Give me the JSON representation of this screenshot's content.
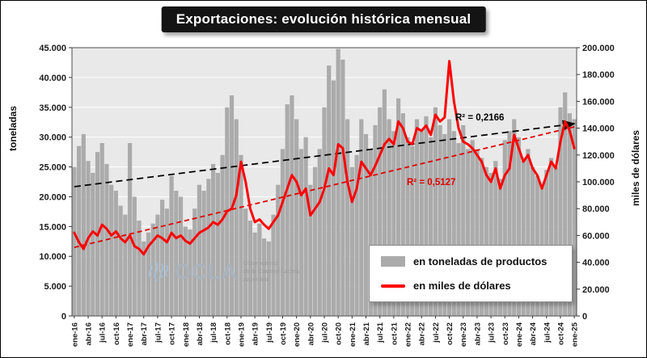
{
  "title": "Exportaciones: evolución histórica mensual",
  "legend": {
    "tonnes_label": "en toneladas de productos",
    "dollars_label": "en miles de dólares"
  },
  "annotations": {
    "r2_tonnes": "R² = 0,2166",
    "r2_dollars": "R² = 0,5127"
  },
  "watermark": {
    "name": "OCLA",
    "line1": "Observatorio",
    "line2": "de la Cadena Láctea",
    "line3": "Argentina"
  },
  "colors": {
    "bar": "#ababab",
    "line": "#fe0000",
    "trend_tonnes": "#000000",
    "trend_dollars": "#e00000",
    "plot_bg": "#e9e9e9",
    "grid": "#ffffff",
    "border": "#4d4d4d",
    "title_bg": "#141414"
  },
  "chart_data": {
    "type": "combo",
    "title": "Exportaciones: evolución histórica mensual",
    "x_tick_every": 3,
    "months": [
      "ene-16",
      "feb-16",
      "mar-16",
      "abr-16",
      "may-16",
      "jun-16",
      "jul-16",
      "ago-16",
      "sep-16",
      "oct-16",
      "nov-16",
      "dic-16",
      "ene-17",
      "feb-17",
      "mar-17",
      "abr-17",
      "may-17",
      "jun-17",
      "jul-17",
      "ago-17",
      "sep-17",
      "oct-17",
      "nov-17",
      "dic-17",
      "ene-18",
      "feb-18",
      "mar-18",
      "abr-18",
      "may-18",
      "jun-18",
      "jul-18",
      "ago-18",
      "sep-18",
      "oct-18",
      "nov-18",
      "dic-18",
      "ene-19",
      "feb-19",
      "mar-19",
      "abr-19",
      "may-19",
      "jun-19",
      "jul-19",
      "ago-19",
      "sep-19",
      "oct-19",
      "nov-19",
      "dic-19",
      "ene-20",
      "feb-20",
      "mar-20",
      "abr-20",
      "may-20",
      "jun-20",
      "jul-20",
      "ago-20",
      "sep-20",
      "oct-20",
      "nov-20",
      "dic-20",
      "ene-21",
      "feb-21",
      "mar-21",
      "abr-21",
      "may-21",
      "jun-21",
      "jul-21",
      "ago-21",
      "sep-21",
      "oct-21",
      "nov-21",
      "dic-21",
      "ene-22",
      "feb-22",
      "mar-22",
      "abr-22",
      "may-22",
      "jun-22",
      "jul-22",
      "ago-22",
      "sep-22",
      "oct-22",
      "nov-22",
      "dic-22",
      "ene-23",
      "feb-23",
      "mar-23",
      "abr-23",
      "may-23",
      "jun-23",
      "jul-23",
      "ago-23",
      "sep-23",
      "oct-23",
      "nov-23",
      "dic-23",
      "ene-24",
      "feb-24",
      "mar-24",
      "abr-24",
      "may-24",
      "jun-24",
      "jul-24",
      "ago-24",
      "sep-24",
      "oct-24",
      "nov-24",
      "dic-24",
      "ene-25"
    ],
    "left_axis": {
      "label": "toneladas",
      "min": 0,
      "max": 45000,
      "step": 5000
    },
    "right_axis": {
      "label": "miles de dólares",
      "min": 0,
      "max": 200000,
      "step": 20000
    },
    "series": [
      {
        "name": "en toneladas de productos",
        "type": "bar",
        "axis": "left",
        "color": "#ababab",
        "values": [
          25000,
          28500,
          30500,
          26000,
          24000,
          27500,
          29000,
          25500,
          22000,
          21000,
          18500,
          17000,
          29000,
          20000,
          16000,
          12500,
          14000,
          15500,
          17000,
          19500,
          18000,
          23500,
          21000,
          20000,
          15000,
          14500,
          18000,
          22000,
          21000,
          23000,
          25500,
          24000,
          27000,
          35000,
          37000,
          33000,
          27000,
          18000,
          16000,
          14000,
          15500,
          13000,
          12500,
          17000,
          22000,
          28000,
          35500,
          37000,
          33000,
          28000,
          30000,
          22000,
          25000,
          28000,
          35000,
          42000,
          39500,
          44800,
          43000,
          33000,
          25000,
          27000,
          33000,
          30500,
          28000,
          32000,
          35000,
          38000,
          33000,
          31000,
          36500,
          34000,
          30000,
          28500,
          33000,
          31000,
          33500,
          30000,
          35000,
          32000,
          30500,
          33000,
          31000,
          29000,
          32000,
          28000,
          29500,
          28000,
          26500,
          25000,
          24000,
          26000,
          23000,
          29500,
          31000,
          33000,
          30000,
          26000,
          28000,
          25000,
          23500,
          22000,
          24500,
          26500,
          25000,
          35000,
          37500,
          34000,
          33000
        ]
      },
      {
        "name": "en miles de dólares",
        "type": "line",
        "axis": "right",
        "color": "#fe0000",
        "values": [
          62000,
          55000,
          50000,
          58000,
          63000,
          60000,
          68000,
          65000,
          60000,
          63000,
          58000,
          55000,
          60000,
          52000,
          50000,
          46000,
          52000,
          56000,
          60000,
          58000,
          55000,
          62000,
          58000,
          60000,
          56000,
          54000,
          58000,
          62000,
          64000,
          66000,
          70000,
          68000,
          72000,
          78000,
          80000,
          90000,
          115000,
          100000,
          80000,
          70000,
          72000,
          68000,
          65000,
          70000,
          75000,
          85000,
          95000,
          105000,
          100000,
          90000,
          95000,
          75000,
          80000,
          85000,
          95000,
          110000,
          105000,
          128000,
          125000,
          100000,
          85000,
          95000,
          115000,
          110000,
          105000,
          112000,
          120000,
          128000,
          132000,
          128000,
          145000,
          140000,
          130000,
          128000,
          140000,
          138000,
          142000,
          135000,
          150000,
          145000,
          148000,
          190000,
          160000,
          140000,
          130000,
          128000,
          125000,
          120000,
          115000,
          105000,
          100000,
          110000,
          95000,
          105000,
          110000,
          135000,
          125000,
          115000,
          120000,
          110000,
          105000,
          95000,
          105000,
          115000,
          110000,
          130000,
          145000,
          138000,
          125000
        ]
      }
    ],
    "trendlines": [
      {
        "series": "en toneladas de productos",
        "style": "dashed",
        "color": "#000000",
        "r2_label": "R² = 0,2166"
      },
      {
        "series": "en miles de dólares",
        "style": "dashed",
        "color": "#e00000",
        "r2_label": "R² = 0,5127"
      }
    ]
  }
}
